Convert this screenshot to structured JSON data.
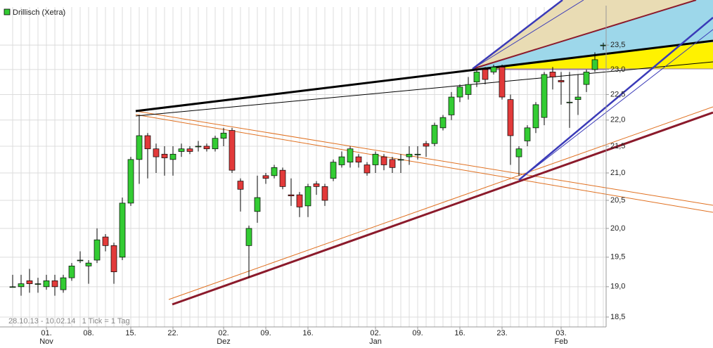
{
  "chart_data": {
    "type": "candlestick",
    "legend": "Drillisch (Xetra)",
    "footer": "28.10.13 - 10.02.14   1 Tick = 1 Tag",
    "up_color": "#33cc33",
    "down_color": "#e23a3a",
    "log_scale": true,
    "grid": true,
    "categories": [
      null,
      null,
      null,
      null,
      "01.",
      null,
      null,
      null,
      null,
      "08.",
      null,
      null,
      null,
      null,
      "15.",
      null,
      null,
      null,
      null,
      "22.",
      null,
      null,
      null,
      null,
      null,
      "02.",
      null,
      null,
      null,
      null,
      "09.",
      null,
      null,
      null,
      null,
      "16.",
      null,
      null,
      null,
      null,
      null,
      null,
      null,
      "02.",
      null,
      null,
      null,
      null,
      "09.",
      null,
      null,
      null,
      null,
      "16.",
      null,
      null,
      null,
      null,
      "23.",
      null,
      null,
      null,
      null,
      null,
      null,
      "03.",
      null,
      null,
      null,
      null,
      null
    ],
    "months": [
      {
        "index": 4,
        "label": "Nov"
      },
      {
        "index": 25,
        "label": "Dez"
      },
      {
        "index": 43,
        "label": "Jan"
      },
      {
        "index": 65,
        "label": "Feb"
      }
    ],
    "open": [
      19.0,
      19.0,
      19.1,
      19.05,
      19.0,
      19.1,
      18.95,
      19.15,
      19.45,
      19.35,
      19.45,
      19.85,
      19.7,
      19.5,
      20.45,
      21.25,
      21.7,
      21.45,
      21.35,
      21.25,
      21.4,
      21.45,
      21.5,
      21.5,
      21.45,
      21.65,
      21.8,
      20.85,
      19.7,
      20.3,
      20.95,
      20.95,
      21.05,
      20.6,
      20.6,
      20.4,
      20.8,
      20.75,
      20.9,
      21.15,
      21.2,
      21.3,
      21.15,
      21.15,
      21.3,
      21.25,
      21.25,
      21.3,
      21.35,
      21.55,
      21.55,
      21.85,
      22.1,
      22.45,
      22.5,
      22.75,
      23.0,
      22.95,
      23.05,
      22.4,
      21.3,
      21.6,
      21.85,
      22.05,
      22.95,
      22.78,
      22.35,
      22.4,
      22.7,
      23.0,
      23.5
    ],
    "high": [
      19.2,
      19.2,
      19.3,
      19.15,
      19.2,
      19.2,
      19.2,
      19.4,
      19.6,
      19.45,
      20.0,
      19.9,
      19.75,
      20.55,
      21.3,
      22.1,
      21.75,
      21.55,
      21.5,
      21.5,
      21.55,
      21.5,
      21.6,
      21.55,
      21.7,
      21.85,
      21.85,
      20.9,
      20.05,
      20.95,
      21.0,
      21.15,
      21.1,
      20.9,
      20.65,
      20.8,
      20.85,
      20.8,
      21.25,
      21.4,
      21.5,
      21.35,
      21.2,
      21.4,
      21.35,
      21.3,
      21.35,
      21.5,
      21.5,
      21.6,
      21.95,
      22.1,
      22.55,
      22.7,
      22.85,
      23.0,
      23.05,
      23.1,
      23.1,
      22.5,
      21.5,
      21.9,
      22.35,
      22.95,
      23.05,
      22.95,
      22.95,
      22.9,
      23.0,
      23.35,
      23.55
    ],
    "low": [
      19.0,
      18.85,
      18.9,
      18.9,
      18.95,
      18.85,
      18.9,
      19.1,
      19.4,
      19.05,
      19.4,
      19.6,
      19.05,
      19.45,
      20.4,
      20.8,
      20.9,
      21.0,
      20.95,
      20.95,
      21.3,
      21.35,
      21.4,
      21.4,
      21.4,
      21.5,
      21.0,
      20.3,
      19.15,
      20.1,
      20.8,
      20.9,
      20.7,
      20.4,
      20.2,
      20.2,
      20.6,
      20.4,
      20.85,
      21.1,
      21.1,
      21.1,
      20.95,
      21.0,
      21.05,
      21.0,
      21.0,
      21.15,
      21.25,
      21.3,
      21.5,
      21.8,
      22.0,
      22.35,
      22.4,
      22.65,
      22.7,
      22.9,
      22.4,
      21.15,
      20.95,
      21.5,
      21.75,
      21.9,
      22.6,
      22.3,
      21.85,
      22.1,
      22.55,
      22.95,
      23.4
    ],
    "close": [
      19.0,
      19.05,
      19.05,
      19.05,
      19.1,
      19.0,
      19.15,
      19.35,
      19.45,
      19.4,
      19.8,
      19.7,
      19.25,
      20.45,
      21.25,
      21.7,
      21.45,
      21.3,
      21.28,
      21.35,
      21.45,
      21.4,
      21.5,
      21.45,
      21.65,
      21.75,
      21.05,
      20.7,
      20.0,
      20.55,
      20.9,
      21.1,
      20.75,
      20.58,
      20.38,
      20.75,
      20.75,
      20.5,
      21.2,
      21.3,
      21.45,
      21.2,
      21.0,
      21.35,
      21.15,
      21.1,
      21.25,
      21.35,
      21.35,
      21.5,
      21.9,
      22.05,
      22.45,
      22.65,
      22.7,
      22.95,
      22.8,
      23.05,
      22.45,
      21.7,
      21.45,
      21.85,
      22.3,
      22.9,
      22.85,
      22.75,
      22.35,
      22.45,
      22.95,
      23.2,
      23.5
    ],
    "ylim": [
      18.34,
      24.3
    ],
    "yticks": [
      {
        "value": 18.5,
        "label": "18,5"
      },
      {
        "value": 19.0,
        "label": "19,0"
      },
      {
        "value": 19.5,
        "label": "19,5"
      },
      {
        "value": 20.0,
        "label": "20,0"
      },
      {
        "value": 20.5,
        "label": "20,5"
      },
      {
        "value": 21.0,
        "label": "21,0"
      },
      {
        "value": 21.5,
        "label": "21,5"
      },
      {
        "value": 22.0,
        "label": "22,0"
      },
      {
        "value": 22.5,
        "label": "22,5"
      },
      {
        "value": 23.0,
        "label": "23,0"
      },
      {
        "value": 23.5,
        "label": "23,5"
      }
    ]
  }
}
